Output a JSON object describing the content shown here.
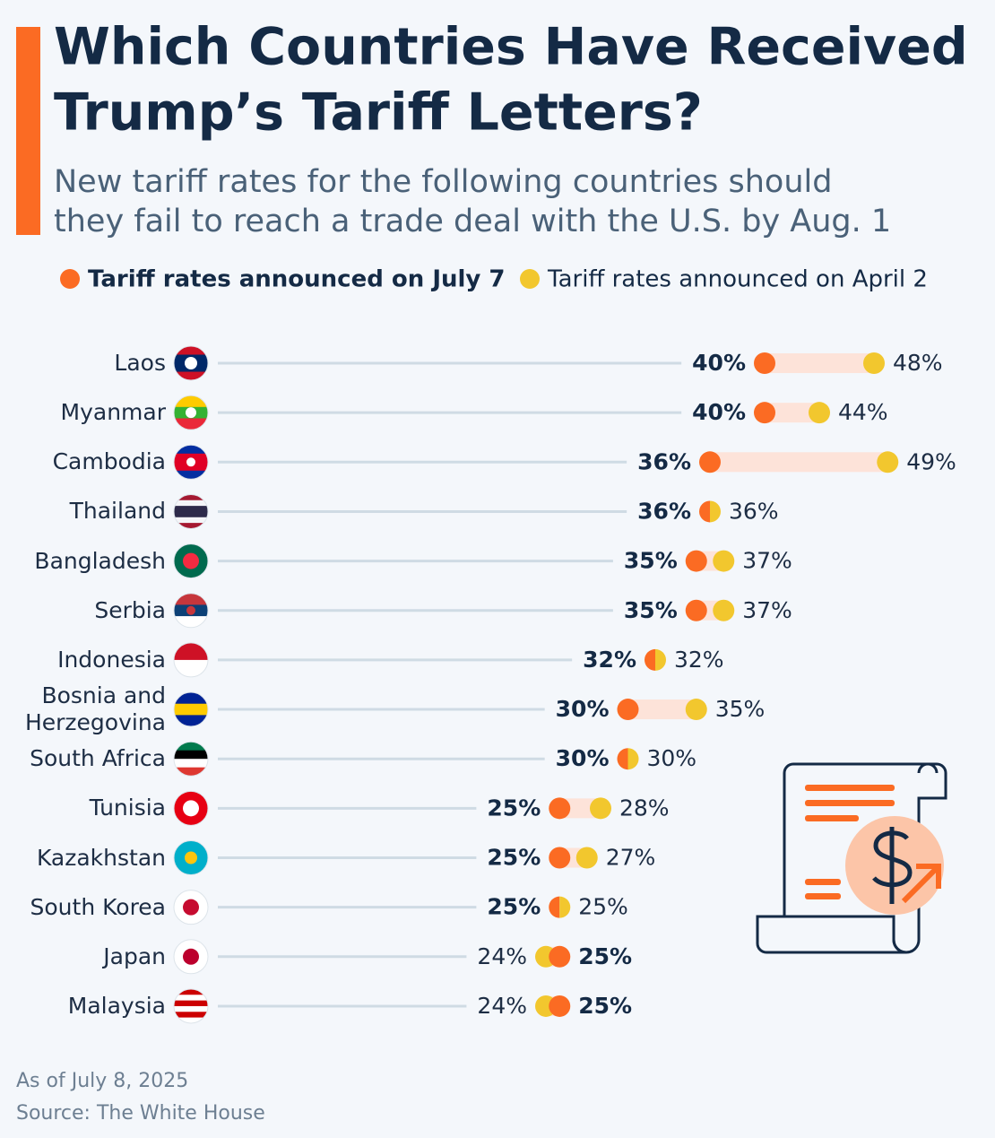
{
  "chart_data": {
    "type": "dumbbell",
    "title_lines": [
      "Which Countries Have Received",
      "Trump’s Tariff Letters?"
    ],
    "subtitle_lines": [
      "New tariff rates for the following countries should",
      "they fail to reach a trade deal with the U.S. by Aug. 1"
    ],
    "categories": [
      "Laos",
      "Myanmar",
      "Cambodia",
      "Thailand",
      "Bangladesh",
      "Serbia",
      "Indonesia",
      "Bosnia and Herzegovina",
      "South Africa",
      "Tunisia",
      "Kazakhstan",
      "South Korea",
      "Japan",
      "Malaysia"
    ],
    "series": [
      {
        "name": "Tariff rates announced on July 7",
        "color": "#fb6b23",
        "values": [
          40,
          40,
          36,
          36,
          35,
          35,
          32,
          30,
          30,
          25,
          25,
          25,
          25,
          25
        ],
        "value_labels": [
          "40%",
          "40%",
          "36%",
          "36%",
          "35%",
          "35%",
          "32%",
          "30%",
          "30%",
          "25%",
          "25%",
          "25%",
          "25%",
          "25%"
        ]
      },
      {
        "name": "Tariff rates announced on April 2",
        "color": "#f2c72e",
        "values": [
          48,
          44,
          49,
          36,
          37,
          37,
          32,
          35,
          30,
          28,
          27,
          25,
          24,
          24
        ],
        "value_labels": [
          "48%",
          "44%",
          "49%",
          "36%",
          "37%",
          "37%",
          "32%",
          "35%",
          "30%",
          "28%",
          "27%",
          "25%",
          "24%",
          "24%"
        ]
      }
    ],
    "notes": [
      "As of July 8, 2025",
      "Source: The White House"
    ]
  }
}
